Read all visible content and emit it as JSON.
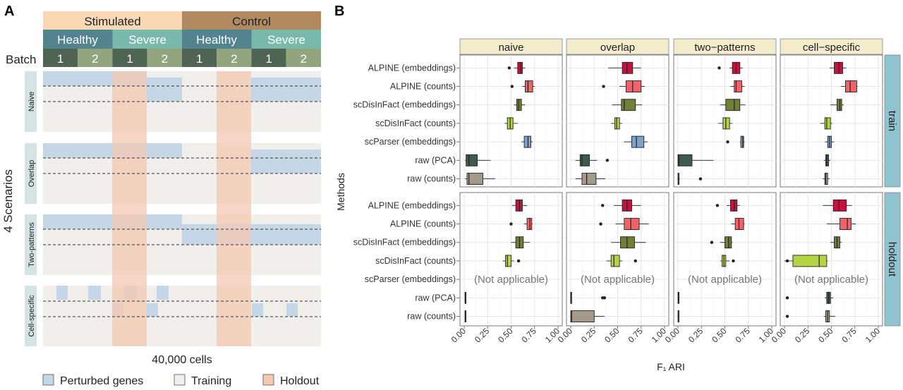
{
  "panel_a": {
    "letter": "A",
    "header": {
      "conditions": [
        "Stimulated",
        "Control"
      ],
      "severities": [
        "Healthy",
        "Severe",
        "Healthy",
        "Severe"
      ],
      "batch_label": "Batch",
      "batches": [
        "1",
        "2",
        "1",
        "2",
        "1",
        "2",
        "1",
        "2"
      ]
    },
    "scenarios_label": "4 Scenarios",
    "scenarios": [
      "Naive",
      "Overlap",
      "Two-patterns",
      "Cell-specific"
    ],
    "cells_label": "40,000 cells",
    "legend": [
      "Perturbed genes",
      "Training",
      "Holdout"
    ],
    "colors": {
      "stimulated": "#f9d8b6",
      "control": "#b28a62",
      "healthy": "#52848f",
      "severe": "#79b9ab",
      "batch_dark": "#4f6452",
      "batch_light": "#93a57e",
      "perturbed": "#c5d6e6",
      "training": "#f1efec",
      "holdout": "#f4c8b1"
    }
  },
  "panel_b": {
    "letter": "B",
    "ylabel": "Methods",
    "xlabel": "F₁ ARI",
    "not_applicable": "(Not applicable)"
  },
  "chart_data": {
    "type": "boxplot",
    "facets_x": [
      "naive",
      "overlap",
      "two−patterns",
      "cell−specific"
    ],
    "facets_y": [
      "train",
      "holdout"
    ],
    "methods": [
      "ALPINE (embeddings)",
      "ALPINE (counts)",
      "scDisInFact (embeddings)",
      "scDisInFact (counts)",
      "scParser (embeddings)",
      "raw (PCA)",
      "raw (counts)"
    ],
    "method_colors": [
      "#c8103e",
      "#f26268",
      "#6f7f35",
      "#b5d342",
      "#7ca3cc",
      "#3f5b4d",
      "#a29a8a"
    ],
    "xlim": [
      0,
      1
    ],
    "xticks": [
      "0.00",
      "0.25",
      "0.50",
      "0.75",
      "1.00"
    ],
    "xtick_values": [
      0,
      0.25,
      0.5,
      0.75,
      1
    ],
    "boxes": {
      "train": {
        "naive": [
          [
            0.53,
            0.57,
            0.6,
            0.62,
            0.65,
            [
              0.48
            ]
          ],
          [
            0.62,
            0.65,
            0.68,
            0.73,
            0.75,
            [
              0.51
            ]
          ],
          [
            0.53,
            0.56,
            0.58,
            0.61,
            0.65,
            []
          ],
          [
            0.43,
            0.46,
            0.49,
            0.52,
            0.57,
            []
          ],
          [
            0.61,
            0.64,
            0.68,
            0.71,
            0.73,
            []
          ],
          [
            0.01,
            0.02,
            0.05,
            0.14,
            0.28,
            []
          ],
          [
            0.01,
            0.03,
            0.05,
            0.2,
            0.33,
            []
          ]
        ],
        "overlap": [
          [
            0.4,
            0.55,
            0.6,
            0.66,
            0.75,
            []
          ],
          [
            0.52,
            0.59,
            0.66,
            0.75,
            0.79,
            [
              0.35
            ]
          ],
          [
            0.44,
            0.54,
            0.57,
            0.69,
            0.76,
            []
          ],
          [
            0.43,
            0.47,
            0.49,
            0.52,
            0.55,
            []
          ],
          [
            0.57,
            0.65,
            0.7,
            0.78,
            0.82,
            []
          ],
          [
            0.05,
            0.1,
            0.12,
            0.2,
            0.28,
            [
              0.39
            ]
          ],
          [
            0.05,
            0.12,
            0.17,
            0.27,
            0.37,
            []
          ]
        ],
        "two−patterns": [
          [
            0.55,
            0.58,
            0.62,
            0.66,
            0.69,
            [
              0.44
            ]
          ],
          [
            0.56,
            0.6,
            0.62,
            0.68,
            0.71,
            []
          ],
          [
            0.45,
            0.51,
            0.6,
            0.66,
            0.72,
            []
          ],
          [
            0.43,
            0.48,
            0.51,
            0.55,
            0.58,
            []
          ],
          [
            0.66,
            0.67,
            0.69,
            0.7,
            0.71,
            [
              0.53
            ]
          ],
          [
            0.0,
            0.0,
            0.01,
            0.15,
            0.38,
            []
          ],
          [
            0.0,
            0.0,
            0.01,
            0.01,
            0.02,
            [
              0.24
            ]
          ]
        ],
        "cell−specific": [
          [
            0.48,
            0.53,
            0.58,
            0.62,
            0.66,
            []
          ],
          [
            0.6,
            0.65,
            0.7,
            0.77,
            0.78,
            []
          ],
          [
            0.49,
            0.56,
            0.59,
            0.61,
            0.63,
            []
          ],
          [
            0.38,
            0.43,
            0.45,
            0.49,
            0.51,
            []
          ],
          [
            0.43,
            0.46,
            0.48,
            0.5,
            0.53,
            []
          ],
          [
            0.42,
            0.44,
            0.45,
            0.47,
            0.49,
            []
          ],
          [
            0.41,
            0.43,
            0.44,
            0.46,
            0.48,
            []
          ]
        ]
      },
      "holdout": {
        "naive": [
          [
            0.51,
            0.55,
            0.59,
            0.62,
            0.67,
            []
          ],
          [
            0.64,
            0.67,
            0.7,
            0.72,
            0.73,
            [
              0.5
            ]
          ],
          [
            0.5,
            0.55,
            0.59,
            0.63,
            0.7,
            []
          ],
          [
            0.41,
            0.44,
            0.46,
            0.5,
            0.53,
            [
              0.58
            ]
          ],
          null,
          [
            0.01,
            0.01,
            0.01,
            0.01,
            0.01,
            []
          ],
          [
            0.01,
            0.01,
            0.01,
            0.01,
            0.02,
            []
          ]
        ],
        "overlap": [
          [
            0.46,
            0.55,
            0.6,
            0.65,
            0.75,
            [
              0.34
            ]
          ],
          [
            0.48,
            0.57,
            0.64,
            0.73,
            0.83,
            [
              0.32
            ]
          ],
          [
            0.43,
            0.53,
            0.6,
            0.68,
            0.8,
            []
          ],
          [
            0.38,
            0.43,
            0.46,
            0.52,
            0.55,
            [
              0.69
            ]
          ],
          null,
          [
            0.0,
            0.0,
            0.0,
            0.01,
            0.01,
            [
              0.34,
              0.36
            ]
          ],
          [
            0.0,
            0.0,
            0.01,
            0.25,
            0.36,
            []
          ]
        ],
        "two−patterns": [
          [
            0.52,
            0.56,
            0.6,
            0.63,
            0.66,
            [
              0.42
            ]
          ],
          [
            0.57,
            0.61,
            0.65,
            0.7,
            0.71,
            []
          ],
          [
            0.45,
            0.5,
            0.54,
            0.57,
            0.58,
            [
              0.36
            ]
          ],
          [
            0.45,
            0.47,
            0.49,
            0.51,
            0.55,
            [
              0.59
            ]
          ],
          null,
          [
            0.0,
            0.0,
            0.01,
            0.01,
            0.01,
            []
          ],
          [
            0.0,
            0.0,
            0.01,
            0.01,
            0.01,
            []
          ]
        ],
        "cell−specific": [
          [
            0.41,
            0.52,
            0.58,
            0.66,
            0.72,
            []
          ],
          [
            0.45,
            0.59,
            0.67,
            0.71,
            0.76,
            []
          ],
          [
            0.49,
            0.53,
            0.56,
            0.59,
            0.61,
            []
          ],
          [
            0.0,
            0.09,
            0.37,
            0.45,
            0.46,
            [
              0.03
            ]
          ],
          null,
          [
            0.43,
            0.45,
            0.47,
            0.49,
            0.52,
            [
              0.03
            ]
          ],
          [
            0.42,
            0.44,
            0.46,
            0.48,
            0.54,
            [
              0.03
            ]
          ]
        ]
      }
    }
  }
}
